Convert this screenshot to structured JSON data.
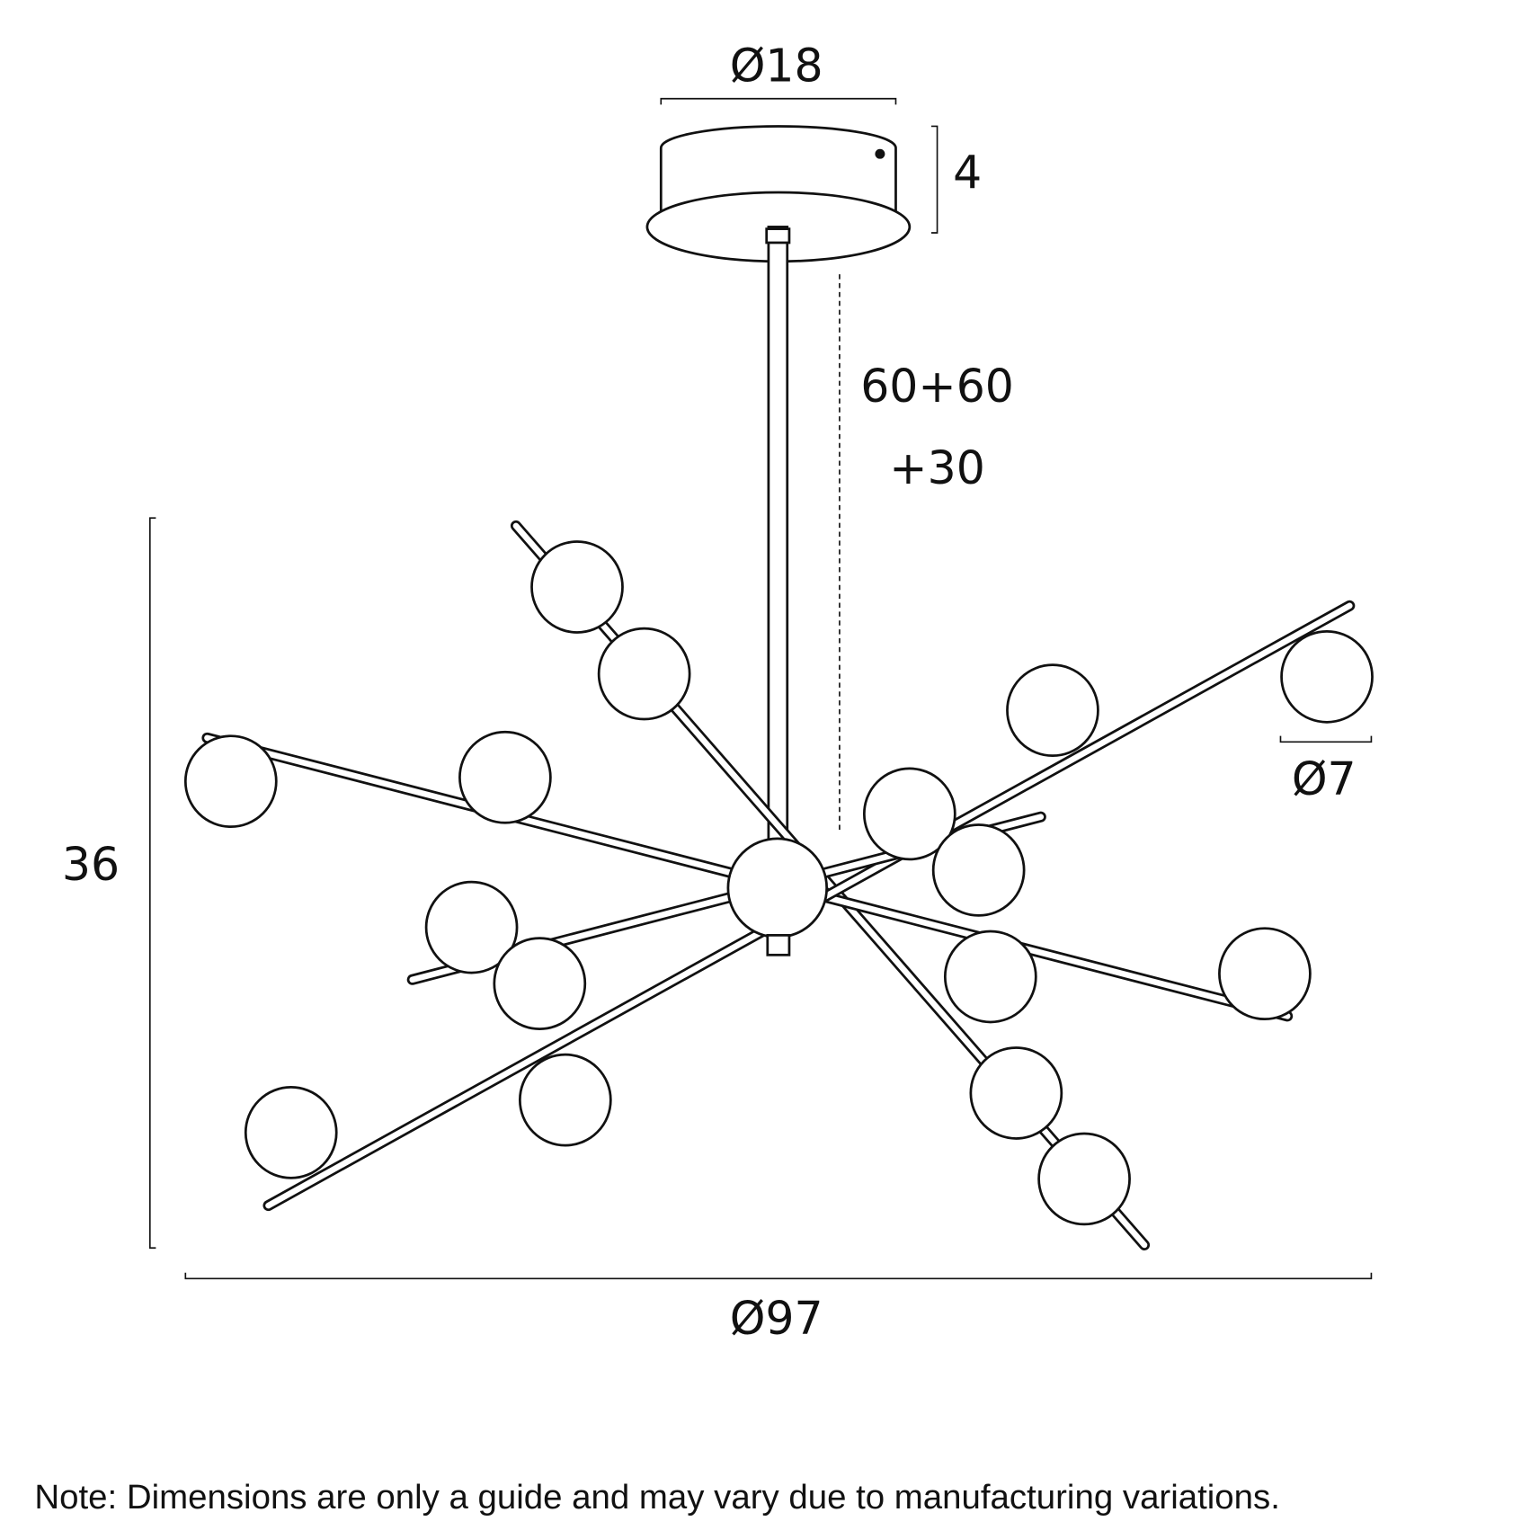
{
  "dimensions": {
    "canopy_diameter": "Ø18",
    "canopy_height": "4",
    "rod_length": "60+60",
    "rod_extra": "+30",
    "height": "36",
    "globe_diameter": "Ø7",
    "overall_diameter": "Ø97"
  },
  "note": "Note: Dimensions are only a guide and may vary due to manufacturing variations."
}
